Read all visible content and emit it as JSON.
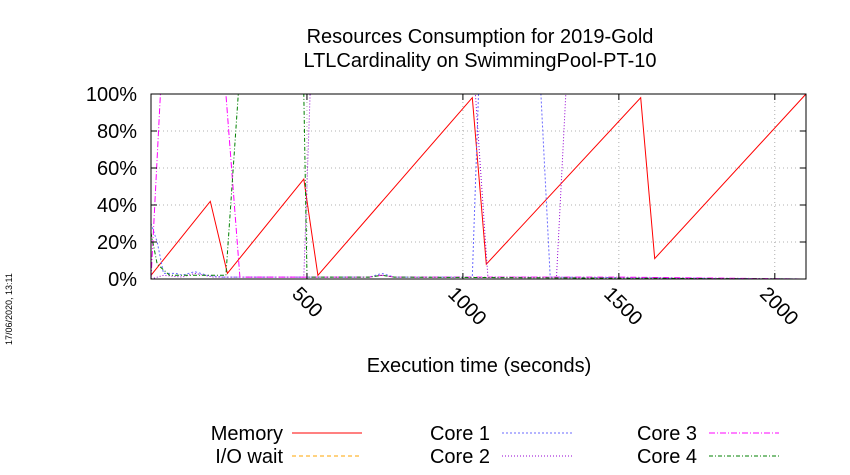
{
  "chart_data": {
    "type": "line",
    "title_line1": "Resources Consumption for 2019-Gold",
    "title_line2": "LTLCardinality on SwimmingPool-PT-10",
    "xlabel": "Execution time (seconds)",
    "ylabel": "",
    "xlim": [
      0,
      2100
    ],
    "ylim": [
      0,
      100
    ],
    "x_ticks": [
      500,
      1000,
      1500,
      2000
    ],
    "y_ticks": [
      0,
      20,
      40,
      60,
      80,
      100
    ],
    "y_tick_labels": [
      "0%",
      "20%",
      "40%",
      "60%",
      "80%",
      "100%"
    ],
    "grid": true,
    "legend_position": "bottom",
    "series": [
      {
        "name": "Memory",
        "color": "#ff0000",
        "dash": "",
        "points": [
          [
            0,
            2
          ],
          [
            190,
            42
          ],
          [
            245,
            3
          ],
          [
            490,
            54
          ],
          [
            535,
            2
          ],
          [
            1030,
            98
          ],
          [
            1075,
            8
          ],
          [
            1570,
            98
          ],
          [
            1615,
            11
          ],
          [
            2100,
            100
          ]
        ]
      },
      {
        "name": "I/O wait",
        "color": "#ffa500",
        "dash": "4,3",
        "points": [
          [
            0,
            0
          ],
          [
            2100,
            0
          ]
        ]
      },
      {
        "name": "Core 1",
        "color": "#6a6aff",
        "dash": "2,2",
        "points": [
          [
            0,
            30
          ],
          [
            20,
            20
          ],
          [
            40,
            3
          ],
          [
            80,
            3
          ],
          [
            100,
            2
          ],
          [
            140,
            4
          ],
          [
            180,
            2
          ],
          [
            230,
            1
          ],
          [
            500,
            1
          ],
          [
            700,
            1
          ],
          [
            740,
            3
          ],
          [
            780,
            1
          ],
          [
            1030,
            1
          ],
          [
            1050,
            100
          ],
          [
            1250,
            100
          ],
          [
            1280,
            1
          ],
          [
            2100,
            0
          ]
        ]
      },
      {
        "name": "Core 2",
        "color": "#9400d3",
        "dash": "1,2",
        "points": [
          [
            0,
            0
          ],
          [
            40,
            2
          ],
          [
            100,
            1
          ],
          [
            140,
            3
          ],
          [
            200,
            1
          ],
          [
            490,
            1
          ],
          [
            510,
            100
          ],
          [
            1040,
            100
          ],
          [
            1080,
            1
          ],
          [
            1300,
            1
          ],
          [
            1330,
            100
          ],
          [
            2100,
            100
          ]
        ]
      },
      {
        "name": "Core 3",
        "color": "#ff00ff",
        "dash": "6,2,1,2",
        "points": [
          [
            0,
            0
          ],
          [
            30,
            100
          ],
          [
            240,
            100
          ],
          [
            285,
            1
          ],
          [
            700,
            1
          ],
          [
            740,
            2
          ],
          [
            780,
            1
          ],
          [
            1500,
            1
          ],
          [
            2100,
            0
          ]
        ]
      },
      {
        "name": "Core 4",
        "color": "#008000",
        "dash": "4,2,1,2",
        "points": [
          [
            0,
            25
          ],
          [
            20,
            8
          ],
          [
            60,
            2
          ],
          [
            240,
            2
          ],
          [
            280,
            100
          ],
          [
            490,
            100
          ],
          [
            500,
            1
          ],
          [
            700,
            1
          ],
          [
            740,
            2
          ],
          [
            780,
            1
          ],
          [
            2100,
            0
          ]
        ]
      }
    ]
  },
  "timestamp": "17/06/2020, 13:11"
}
